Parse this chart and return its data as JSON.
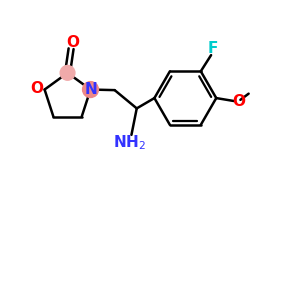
{
  "bg_color": "#ffffff",
  "bond_color": "#000000",
  "O_color": "#ff0000",
  "N_color": "#3333ff",
  "F_color": "#00cccc",
  "highlight_N": "#ee8888",
  "highlight_C": "#f0aaaa",
  "lw": 1.8,
  "figsize": [
    3.0,
    3.0
  ],
  "dpi": 100,
  "xlim": [
    0,
    10
  ],
  "ylim": [
    0,
    10
  ]
}
